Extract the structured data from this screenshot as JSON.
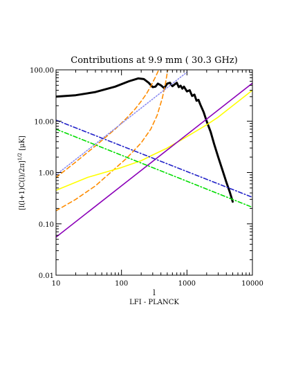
{
  "chart_data": {
    "type": "line",
    "title": "Contributions at 9.9 mm ( 30.3 GHz)",
    "xlabel_main": "l",
    "xlabel_sub": "LFI - PLANCK",
    "ylabel": "[l(l+1)C(l)/2π]^{1/2} [μK]",
    "xscale": "log",
    "yscale": "log",
    "xlim": [
      10,
      10000
    ],
    "ylim": [
      0.01,
      100
    ],
    "x_ticks": [
      {
        "value": 10,
        "label": "10"
      },
      {
        "value": 100,
        "label": "100"
      },
      {
        "value": 1000,
        "label": "1000"
      },
      {
        "value": 10000,
        "label": "10000"
      }
    ],
    "y_ticks": [
      {
        "value": 0.01,
        "label": "0.01"
      },
      {
        "value": 0.1,
        "label": "0.10"
      },
      {
        "value": 1,
        "label": "1.00"
      },
      {
        "value": 10,
        "label": "10.00"
      },
      {
        "value": 100,
        "label": "100.00"
      }
    ],
    "series": [
      {
        "color": "#000000",
        "dash": "solid",
        "x": [
          10,
          20,
          40,
          80,
          130,
          180,
          220,
          260,
          300,
          330,
          360,
          400,
          450,
          500,
          550,
          600,
          650,
          700,
          750,
          800,
          850,
          900,
          1000,
          1100,
          1200,
          1300,
          1400,
          1500,
          1600,
          1800,
          2000,
          2300,
          2600,
          3000,
          3500,
          4000,
          4500,
          5000
        ],
        "y": [
          30,
          32,
          37,
          47,
          60,
          68,
          66,
          56,
          46,
          47,
          54,
          50,
          44,
          54,
          56,
          48,
          52,
          56,
          46,
          49,
          43,
          47,
          38,
          40,
          31,
          33,
          25,
          26,
          21,
          15,
          10,
          6.2,
          3.6,
          2.0,
          1.1,
          0.65,
          0.42,
          0.27
        ]
      },
      {
        "color": "#ff8c00",
        "dash": "dashed",
        "x": [
          10,
          20,
          40,
          80,
          120,
          160,
          200,
          240,
          280,
          320,
          350,
          370
        ],
        "y": [
          0.8,
          1.6,
          3.3,
          7,
          11.5,
          17,
          24.5,
          34,
          48,
          67,
          85,
          100
        ]
      },
      {
        "color": "#ff8c00",
        "dash": "dashed",
        "x": [
          10,
          20,
          40,
          80,
          120,
          200,
          280,
          350,
          420,
          470,
          510
        ],
        "y": [
          0.18,
          0.3,
          0.55,
          1.2,
          1.9,
          3.8,
          7,
          13,
          28,
          55,
          100
        ]
      },
      {
        "color": "#8a8af0",
        "dash": "dotted",
        "x": [
          10,
          100,
          1000
        ],
        "y": [
          0.9,
          9,
          90
        ]
      },
      {
        "color": "#ffff00",
        "dash": "solid",
        "x": [
          10,
          30,
          100,
          200,
          300,
          500,
          1000,
          2000,
          3000,
          5000,
          10000
        ],
        "y": [
          0.45,
          0.8,
          1.25,
          1.7,
          2.2,
          3,
          5,
          8.5,
          12,
          20,
          40
        ]
      },
      {
        "color": "#8b00b8",
        "dash": "solid",
        "x": [
          10,
          10000
        ],
        "y": [
          0.055,
          55
        ]
      },
      {
        "color": "#2020c8",
        "dash": "dashdot",
        "x": [
          10,
          10000
        ],
        "y": [
          10.5,
          0.33
        ]
      },
      {
        "color": "#00dd00",
        "dash": "dashdot",
        "x": [
          10,
          10000
        ],
        "y": [
          7,
          0.21
        ]
      }
    ]
  }
}
